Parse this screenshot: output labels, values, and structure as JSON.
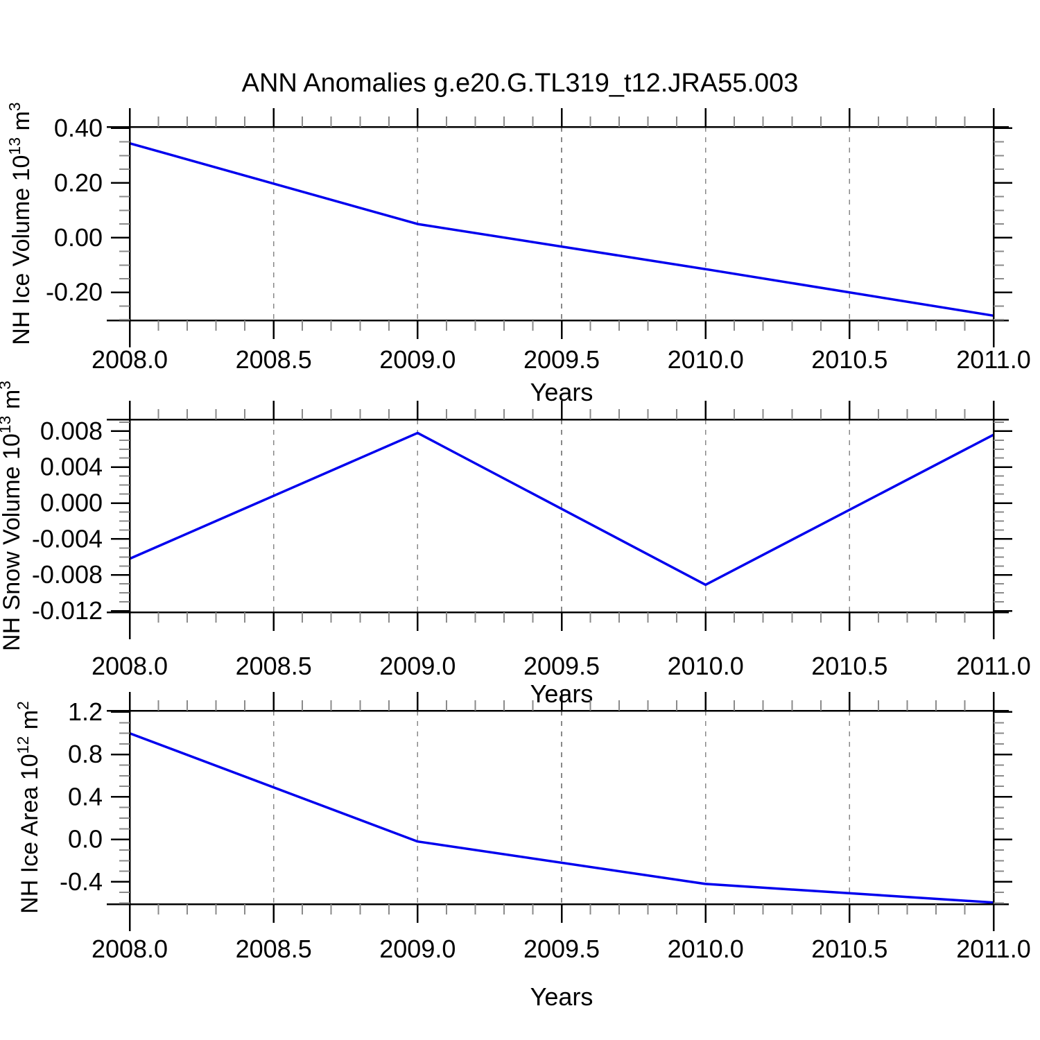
{
  "figure": {
    "title": "ANN Anomalies g.e20.G.TL319_t12.JRA55.003",
    "background_color": "#ffffff",
    "line_color": "#0000ee",
    "axis_color": "#000000",
    "major_tick_color": "#000000",
    "minor_tick_color": "#8a8a8a",
    "grid_color": "#888888"
  },
  "chart_data": [
    {
      "type": "line",
      "panel": "top",
      "x": [
        2008.0,
        2009.0,
        2010.0,
        2011.0
      ],
      "values": [
        0.345,
        0.05,
        -0.115,
        -0.285
      ],
      "xlabel": "Years",
      "ylabel_segments": [
        {
          "text": "NH Ice Volume 10",
          "sup": false
        },
        {
          "text": "13",
          "sup": true
        },
        {
          "text": " m",
          "sup": false
        },
        {
          "text": "3",
          "sup": true
        }
      ],
      "xlim": [
        2008.0,
        2011.0
      ],
      "ylim": [
        -0.302,
        0.405
      ],
      "xticks": {
        "values": [
          2008.0,
          2008.5,
          2009.0,
          2009.5,
          2010.0,
          2010.5,
          2011.0
        ],
        "labels": [
          "2008.0",
          "2008.5",
          "2009.0",
          "2009.5",
          "2010.0",
          "2010.5",
          "2011.0"
        ],
        "minor_step": 0.1
      },
      "yticks": {
        "values": [
          0.4,
          0.2,
          0.0,
          -0.2
        ],
        "labels": [
          "0.40",
          "0.20",
          "0.00",
          "-0.20"
        ],
        "minor_step": 0.05
      },
      "gridlines_x": [
        2008.5,
        2009.0,
        2009.5,
        2010.0,
        2010.5
      ],
      "grid_dashed": true,
      "legend": "none"
    },
    {
      "type": "line",
      "panel": "middle",
      "x": [
        2008.0,
        2009.0,
        2010.0,
        2011.0
      ],
      "values": [
        -0.0062,
        0.0078,
        -0.0091,
        0.0076
      ],
      "xlabel": "Years",
      "ylabel_segments": [
        {
          "text": "NH Snow Volume 10",
          "sup": false
        },
        {
          "text": "13",
          "sup": true
        },
        {
          "text": " m",
          "sup": false
        },
        {
          "text": "3",
          "sup": true
        }
      ],
      "xlim": [
        2008.0,
        2011.0
      ],
      "ylim": [
        -0.01215,
        0.0093
      ],
      "xticks": {
        "values": [
          2008.0,
          2008.5,
          2009.0,
          2009.5,
          2010.0,
          2010.5,
          2011.0
        ],
        "labels": [
          "2008.0",
          "2008.5",
          "2009.0",
          "2009.5",
          "2010.0",
          "2010.5",
          "2011.0"
        ],
        "minor_step": 0.1
      },
      "yticks": {
        "values": [
          0.008,
          0.004,
          0.0,
          -0.004,
          -0.008,
          -0.012
        ],
        "labels": [
          "0.008",
          "0.004",
          "0.000",
          "-0.004",
          "-0.008",
          "-0.012"
        ],
        "minor_step": 0.001
      },
      "gridlines_x": [
        2008.5,
        2009.0,
        2009.5,
        2010.0,
        2010.5
      ],
      "grid_dashed": true,
      "legend": "none"
    },
    {
      "type": "line",
      "panel": "bottom",
      "x": [
        2008.0,
        2009.0,
        2010.0,
        2011.0
      ],
      "values": [
        1.0,
        -0.02,
        -0.42,
        -0.595
      ],
      "xlabel": "Years",
      "ylabel_segments": [
        {
          "text": "NH Ice Area 10",
          "sup": false
        },
        {
          "text": "12",
          "sup": true
        },
        {
          "text": " m",
          "sup": false
        },
        {
          "text": "2",
          "sup": true
        }
      ],
      "xlim": [
        2008.0,
        2011.0
      ],
      "ylim": [
        -0.61,
        1.213
      ],
      "xticks": {
        "values": [
          2008.0,
          2008.5,
          2009.0,
          2009.5,
          2010.0,
          2010.5,
          2011.0
        ],
        "labels": [
          "2008.0",
          "2008.5",
          "2009.0",
          "2009.5",
          "2010.0",
          "2010.5",
          "2011.0"
        ],
        "minor_step": 0.1
      },
      "yticks": {
        "values": [
          1.2,
          0.8,
          0.4,
          0.0,
          -0.4
        ],
        "labels": [
          "1.2",
          "0.8",
          "0.4",
          "0.0",
          "-0.4"
        ],
        "minor_step": 0.1
      },
      "gridlines_x": [
        2008.5,
        2009.0,
        2009.5,
        2010.0,
        2010.5
      ],
      "grid_dashed": true,
      "legend": "none"
    }
  ]
}
